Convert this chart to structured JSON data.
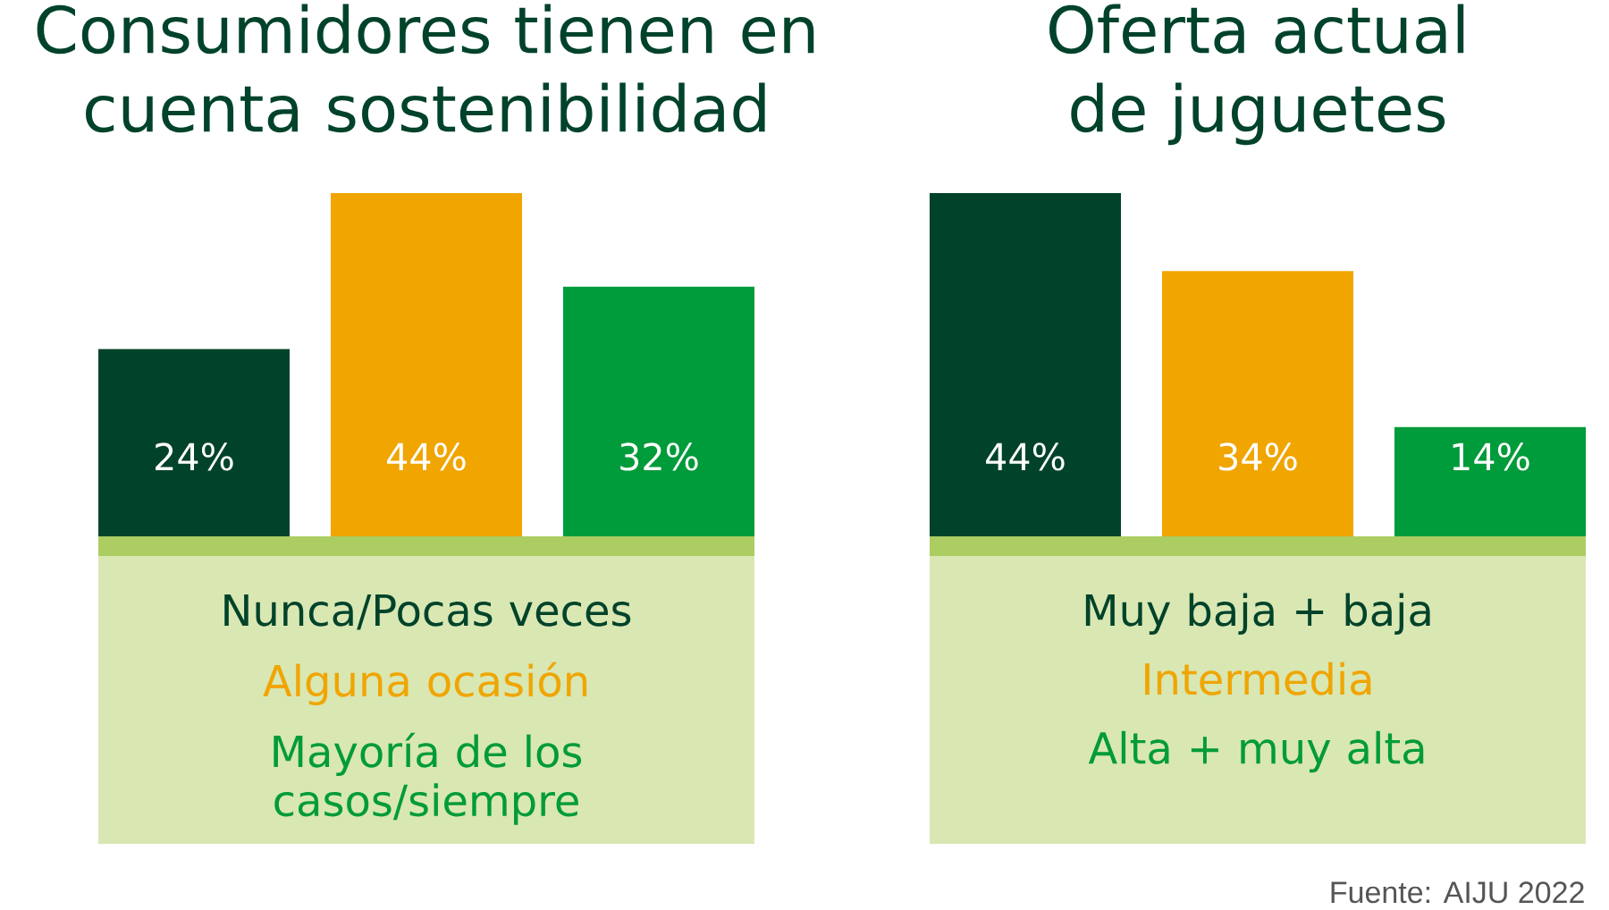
{
  "chart_data": [
    {
      "type": "bar",
      "title": "Consumidores tienen en cuenta sostenibilidad",
      "categories": [
        null,
        null,
        null
      ],
      "stacked": true,
      "series": [
        {
          "name": "Nunca/Pocas veces",
          "color": "#00432a",
          "values": [
            24,
            null,
            null
          ],
          "value_labels": [
            "24%",
            null,
            null
          ]
        },
        {
          "name": "Alguna ocasión",
          "color": "#f0a500",
          "values": [
            null,
            44,
            null
          ],
          "value_labels": [
            null,
            "44%",
            null
          ]
        },
        {
          "name": "Mayoría de los casos/siempre",
          "color": "#009b3a",
          "values": [
            null,
            null,
            32
          ],
          "value_labels": [
            null,
            null,
            "32%"
          ]
        }
      ]
    },
    {
      "type": "bar",
      "title": "Oferta actual de juguetes",
      "categories": [
        null,
        null,
        null
      ],
      "stacked": true,
      "series": [
        {
          "name": "Muy baja + baja",
          "color": "#00432a",
          "values": [
            44,
            null,
            null
          ],
          "value_labels": [
            "44%",
            null,
            null
          ]
        },
        {
          "name": "Intermedia",
          "color": "#f0a500",
          "values": [
            null,
            34,
            null
          ],
          "value_labels": [
            null,
            "34%",
            null
          ]
        },
        {
          "name": "Alta + muy alta",
          "color": "#009b3a",
          "values": [
            null,
            null,
            14
          ],
          "value_labels": [
            null,
            null,
            "14%"
          ]
        }
      ],
      "annotations": [
        "Fuente: AIJU 2022"
      ]
    }
  ]
}
